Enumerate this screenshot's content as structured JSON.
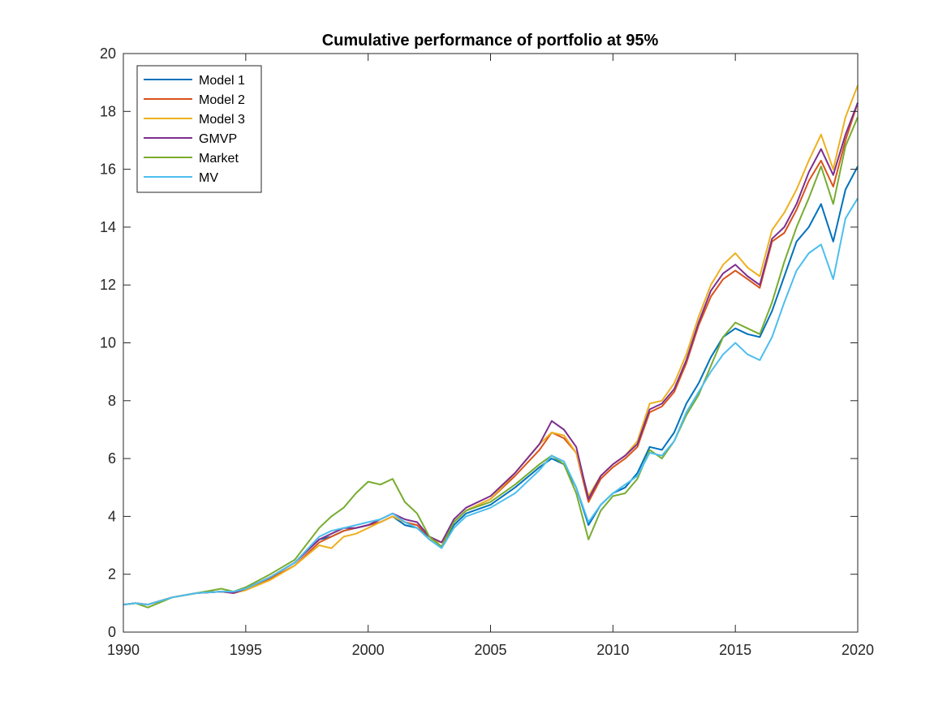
{
  "chart_data": {
    "type": "line",
    "title": "Cumulative performance of portfolio at 95%",
    "xlabel": "",
    "ylabel": "",
    "xlim": [
      1990,
      2020
    ],
    "ylim": [
      0,
      20
    ],
    "x_ticks": [
      1990,
      1995,
      2000,
      2005,
      2010,
      2015,
      2020
    ],
    "y_ticks": [
      0,
      2,
      4,
      6,
      8,
      10,
      12,
      14,
      16,
      18,
      20
    ],
    "grid": false,
    "legend_position": "top-left",
    "series": [
      {
        "name": "Model 1",
        "color": "#0072BD",
        "points": [
          [
            1990,
            0.95
          ],
          [
            1990.5,
            1.0
          ],
          [
            1991,
            0.95
          ],
          [
            1992,
            1.2
          ],
          [
            1993,
            1.35
          ],
          [
            1994,
            1.4
          ],
          [
            1994.5,
            1.4
          ],
          [
            1995,
            1.5
          ],
          [
            1996,
            1.9
          ],
          [
            1997,
            2.4
          ],
          [
            1998,
            3.2
          ],
          [
            1998.5,
            3.3
          ],
          [
            1999,
            3.5
          ],
          [
            1999.5,
            3.6
          ],
          [
            2000,
            3.7
          ],
          [
            2000.5,
            3.8
          ],
          [
            2001,
            4.0
          ],
          [
            2001.5,
            3.7
          ],
          [
            2002,
            3.6
          ],
          [
            2002.5,
            3.3
          ],
          [
            2003,
            2.95
          ],
          [
            2003.5,
            3.7
          ],
          [
            2004,
            4.1
          ],
          [
            2005,
            4.4
          ],
          [
            2006,
            5.0
          ],
          [
            2007,
            5.7
          ],
          [
            2007.5,
            6.0
          ],
          [
            2008,
            5.8
          ],
          [
            2008.5,
            5.0
          ],
          [
            2009,
            3.7
          ],
          [
            2009.5,
            4.4
          ],
          [
            2010,
            4.8
          ],
          [
            2010.5,
            5.0
          ],
          [
            2011,
            5.5
          ],
          [
            2011.5,
            6.4
          ],
          [
            2012,
            6.3
          ],
          [
            2012.5,
            6.9
          ],
          [
            2013,
            7.9
          ],
          [
            2013.5,
            8.6
          ],
          [
            2014,
            9.5
          ],
          [
            2014.5,
            10.2
          ],
          [
            2015,
            10.5
          ],
          [
            2015.5,
            10.3
          ],
          [
            2016,
            10.2
          ],
          [
            2016.5,
            11.1
          ],
          [
            2017,
            12.3
          ],
          [
            2017.5,
            13.5
          ],
          [
            2018,
            14.0
          ],
          [
            2018.5,
            14.8
          ],
          [
            2019,
            13.5
          ],
          [
            2019.5,
            15.3
          ],
          [
            2020,
            16.1
          ]
        ]
      },
      {
        "name": "Model 2",
        "color": "#D95319",
        "points": [
          [
            1990,
            0.95
          ],
          [
            1990.5,
            1.0
          ],
          [
            1991,
            0.95
          ],
          [
            1992,
            1.2
          ],
          [
            1993,
            1.35
          ],
          [
            1994,
            1.4
          ],
          [
            1994.5,
            1.35
          ],
          [
            1995,
            1.45
          ],
          [
            1996,
            1.85
          ],
          [
            1997,
            2.3
          ],
          [
            1998,
            3.1
          ],
          [
            1998.5,
            3.3
          ],
          [
            1999,
            3.5
          ],
          [
            1999.5,
            3.6
          ],
          [
            2000,
            3.7
          ],
          [
            2000.5,
            3.8
          ],
          [
            2001,
            4.0
          ],
          [
            2001.5,
            3.8
          ],
          [
            2002,
            3.7
          ],
          [
            2002.5,
            3.3
          ],
          [
            2003,
            3.1
          ],
          [
            2003.5,
            3.8
          ],
          [
            2004,
            4.2
          ],
          [
            2005,
            4.6
          ],
          [
            2006,
            5.4
          ],
          [
            2007,
            6.3
          ],
          [
            2007.5,
            6.9
          ],
          [
            2008,
            6.7
          ],
          [
            2008.5,
            6.2
          ],
          [
            2009,
            4.5
          ],
          [
            2009.5,
            5.3
          ],
          [
            2010,
            5.7
          ],
          [
            2010.5,
            6.0
          ],
          [
            2011,
            6.4
          ],
          [
            2011.5,
            7.6
          ],
          [
            2012,
            7.8
          ],
          [
            2012.5,
            8.3
          ],
          [
            2013,
            9.3
          ],
          [
            2013.5,
            10.6
          ],
          [
            2014,
            11.6
          ],
          [
            2014.5,
            12.2
          ],
          [
            2015,
            12.5
          ],
          [
            2015.5,
            12.2
          ],
          [
            2016,
            11.9
          ],
          [
            2016.5,
            13.5
          ],
          [
            2017,
            13.8
          ],
          [
            2017.5,
            14.6
          ],
          [
            2018,
            15.6
          ],
          [
            2018.5,
            16.3
          ],
          [
            2019,
            15.4
          ],
          [
            2019.5,
            17.0
          ],
          [
            2020,
            18.3
          ]
        ]
      },
      {
        "name": "Model 3",
        "color": "#EDB120",
        "points": [
          [
            1990,
            0.95
          ],
          [
            1990.5,
            1.0
          ],
          [
            1991,
            0.95
          ],
          [
            1992,
            1.2
          ],
          [
            1993,
            1.35
          ],
          [
            1994,
            1.4
          ],
          [
            1994.5,
            1.35
          ],
          [
            1995,
            1.45
          ],
          [
            1996,
            1.8
          ],
          [
            1997,
            2.3
          ],
          [
            1998,
            3.0
          ],
          [
            1998.5,
            2.9
          ],
          [
            1999,
            3.3
          ],
          [
            1999.5,
            3.4
          ],
          [
            2000,
            3.6
          ],
          [
            2000.5,
            3.8
          ],
          [
            2001,
            4.0
          ],
          [
            2001.5,
            3.8
          ],
          [
            2002,
            3.6
          ],
          [
            2002.5,
            3.2
          ],
          [
            2003,
            3.1
          ],
          [
            2003.5,
            3.8
          ],
          [
            2004,
            4.2
          ],
          [
            2005,
            4.6
          ],
          [
            2006,
            5.5
          ],
          [
            2007,
            6.5
          ],
          [
            2007.5,
            6.9
          ],
          [
            2008,
            6.8
          ],
          [
            2008.5,
            6.2
          ],
          [
            2009,
            4.7
          ],
          [
            2009.5,
            5.4
          ],
          [
            2010,
            5.8
          ],
          [
            2010.5,
            6.1
          ],
          [
            2011,
            6.6
          ],
          [
            2011.5,
            7.9
          ],
          [
            2012,
            8.0
          ],
          [
            2012.5,
            8.6
          ],
          [
            2013,
            9.6
          ],
          [
            2013.5,
            10.9
          ],
          [
            2014,
            12.0
          ],
          [
            2014.5,
            12.7
          ],
          [
            2015,
            13.1
          ],
          [
            2015.5,
            12.6
          ],
          [
            2016,
            12.3
          ],
          [
            2016.5,
            13.9
          ],
          [
            2017,
            14.5
          ],
          [
            2017.5,
            15.3
          ],
          [
            2018,
            16.3
          ],
          [
            2018.5,
            17.2
          ],
          [
            2019,
            16.0
          ],
          [
            2019.5,
            17.8
          ],
          [
            2020,
            18.9
          ]
        ]
      },
      {
        "name": "GMVP",
        "color": "#7E2F8E",
        "points": [
          [
            1990,
            0.95
          ],
          [
            1990.5,
            1.0
          ],
          [
            1991,
            0.95
          ],
          [
            1992,
            1.2
          ],
          [
            1993,
            1.35
          ],
          [
            1994,
            1.4
          ],
          [
            1994.5,
            1.35
          ],
          [
            1995,
            1.5
          ],
          [
            1996,
            1.9
          ],
          [
            1997,
            2.4
          ],
          [
            1998,
            3.2
          ],
          [
            1998.5,
            3.4
          ],
          [
            1999,
            3.6
          ],
          [
            1999.5,
            3.6
          ],
          [
            2000,
            3.7
          ],
          [
            2000.5,
            3.9
          ],
          [
            2001,
            4.1
          ],
          [
            2001.5,
            3.9
          ],
          [
            2002,
            3.8
          ],
          [
            2002.5,
            3.3
          ],
          [
            2003,
            3.1
          ],
          [
            2003.5,
            3.9
          ],
          [
            2004,
            4.3
          ],
          [
            2005,
            4.7
          ],
          [
            2006,
            5.5
          ],
          [
            2007,
            6.5
          ],
          [
            2007.5,
            7.3
          ],
          [
            2008,
            7.0
          ],
          [
            2008.5,
            6.4
          ],
          [
            2009,
            4.6
          ],
          [
            2009.5,
            5.4
          ],
          [
            2010,
            5.8
          ],
          [
            2010.5,
            6.1
          ],
          [
            2011,
            6.5
          ],
          [
            2011.5,
            7.7
          ],
          [
            2012,
            7.9
          ],
          [
            2012.5,
            8.4
          ],
          [
            2013,
            9.4
          ],
          [
            2013.5,
            10.7
          ],
          [
            2014,
            11.8
          ],
          [
            2014.5,
            12.4
          ],
          [
            2015,
            12.7
          ],
          [
            2015.5,
            12.3
          ],
          [
            2016,
            12.0
          ],
          [
            2016.5,
            13.6
          ],
          [
            2017,
            14.0
          ],
          [
            2017.5,
            14.8
          ],
          [
            2018,
            15.9
          ],
          [
            2018.5,
            16.7
          ],
          [
            2019,
            15.8
          ],
          [
            2019.5,
            17.2
          ],
          [
            2020,
            18.3
          ]
        ]
      },
      {
        "name": "Market",
        "color": "#77AC30",
        "points": [
          [
            1990,
            0.95
          ],
          [
            1990.5,
            1.0
          ],
          [
            1991,
            0.85
          ],
          [
            1992,
            1.2
          ],
          [
            1993,
            1.35
          ],
          [
            1994,
            1.5
          ],
          [
            1994.5,
            1.4
          ],
          [
            1995,
            1.55
          ],
          [
            1996,
            2.0
          ],
          [
            1997,
            2.5
          ],
          [
            1998,
            3.6
          ],
          [
            1998.5,
            4.0
          ],
          [
            1999,
            4.3
          ],
          [
            1999.5,
            4.8
          ],
          [
            2000,
            5.2
          ],
          [
            2000.5,
            5.1
          ],
          [
            2001,
            5.3
          ],
          [
            2001.5,
            4.5
          ],
          [
            2002,
            4.1
          ],
          [
            2002.5,
            3.3
          ],
          [
            2003,
            2.95
          ],
          [
            2003.5,
            3.8
          ],
          [
            2004,
            4.2
          ],
          [
            2005,
            4.5
          ],
          [
            2006,
            5.1
          ],
          [
            2007,
            5.8
          ],
          [
            2007.5,
            6.1
          ],
          [
            2008,
            5.8
          ],
          [
            2008.5,
            4.8
          ],
          [
            2009,
            3.2
          ],
          [
            2009.5,
            4.2
          ],
          [
            2010,
            4.7
          ],
          [
            2010.5,
            4.8
          ],
          [
            2011,
            5.3
          ],
          [
            2011.5,
            6.3
          ],
          [
            2012,
            6.0
          ],
          [
            2012.5,
            6.6
          ],
          [
            2013,
            7.5
          ],
          [
            2013.5,
            8.2
          ],
          [
            2014,
            9.2
          ],
          [
            2014.5,
            10.2
          ],
          [
            2015,
            10.7
          ],
          [
            2015.5,
            10.5
          ],
          [
            2016,
            10.3
          ],
          [
            2016.5,
            11.4
          ],
          [
            2017,
            12.8
          ],
          [
            2017.5,
            14.0
          ],
          [
            2018,
            15.0
          ],
          [
            2018.5,
            16.1
          ],
          [
            2019,
            14.8
          ],
          [
            2019.5,
            16.8
          ],
          [
            2020,
            17.8
          ]
        ]
      },
      {
        "name": "MV",
        "color": "#4DBEEE",
        "points": [
          [
            1990,
            0.95
          ],
          [
            1990.5,
            1.0
          ],
          [
            1991,
            0.95
          ],
          [
            1992,
            1.2
          ],
          [
            1993,
            1.35
          ],
          [
            1994,
            1.4
          ],
          [
            1994.5,
            1.4
          ],
          [
            1995,
            1.5
          ],
          [
            1996,
            1.9
          ],
          [
            1997,
            2.4
          ],
          [
            1998,
            3.3
          ],
          [
            1998.5,
            3.5
          ],
          [
            1999,
            3.6
          ],
          [
            1999.5,
            3.7
          ],
          [
            2000,
            3.8
          ],
          [
            2000.5,
            3.9
          ],
          [
            2001,
            4.1
          ],
          [
            2001.5,
            3.8
          ],
          [
            2002,
            3.6
          ],
          [
            2002.5,
            3.2
          ],
          [
            2003,
            2.9
          ],
          [
            2003.5,
            3.6
          ],
          [
            2004,
            4.0
          ],
          [
            2005,
            4.3
          ],
          [
            2006,
            4.8
          ],
          [
            2007,
            5.6
          ],
          [
            2007.5,
            6.1
          ],
          [
            2008,
            5.9
          ],
          [
            2008.5,
            5.0
          ],
          [
            2009,
            3.8
          ],
          [
            2009.5,
            4.4
          ],
          [
            2010,
            4.8
          ],
          [
            2010.5,
            5.1
          ],
          [
            2011,
            5.4
          ],
          [
            2011.5,
            6.2
          ],
          [
            2012,
            6.1
          ],
          [
            2012.5,
            6.6
          ],
          [
            2013,
            7.6
          ],
          [
            2013.5,
            8.3
          ],
          [
            2014,
            9.0
          ],
          [
            2014.5,
            9.6
          ],
          [
            2015,
            10.0
          ],
          [
            2015.5,
            9.6
          ],
          [
            2016,
            9.4
          ],
          [
            2016.5,
            10.2
          ],
          [
            2017,
            11.4
          ],
          [
            2017.5,
            12.5
          ],
          [
            2018,
            13.1
          ],
          [
            2018.5,
            13.4
          ],
          [
            2019,
            12.2
          ],
          [
            2019.5,
            14.3
          ],
          [
            2020,
            15.0
          ]
        ]
      }
    ]
  }
}
